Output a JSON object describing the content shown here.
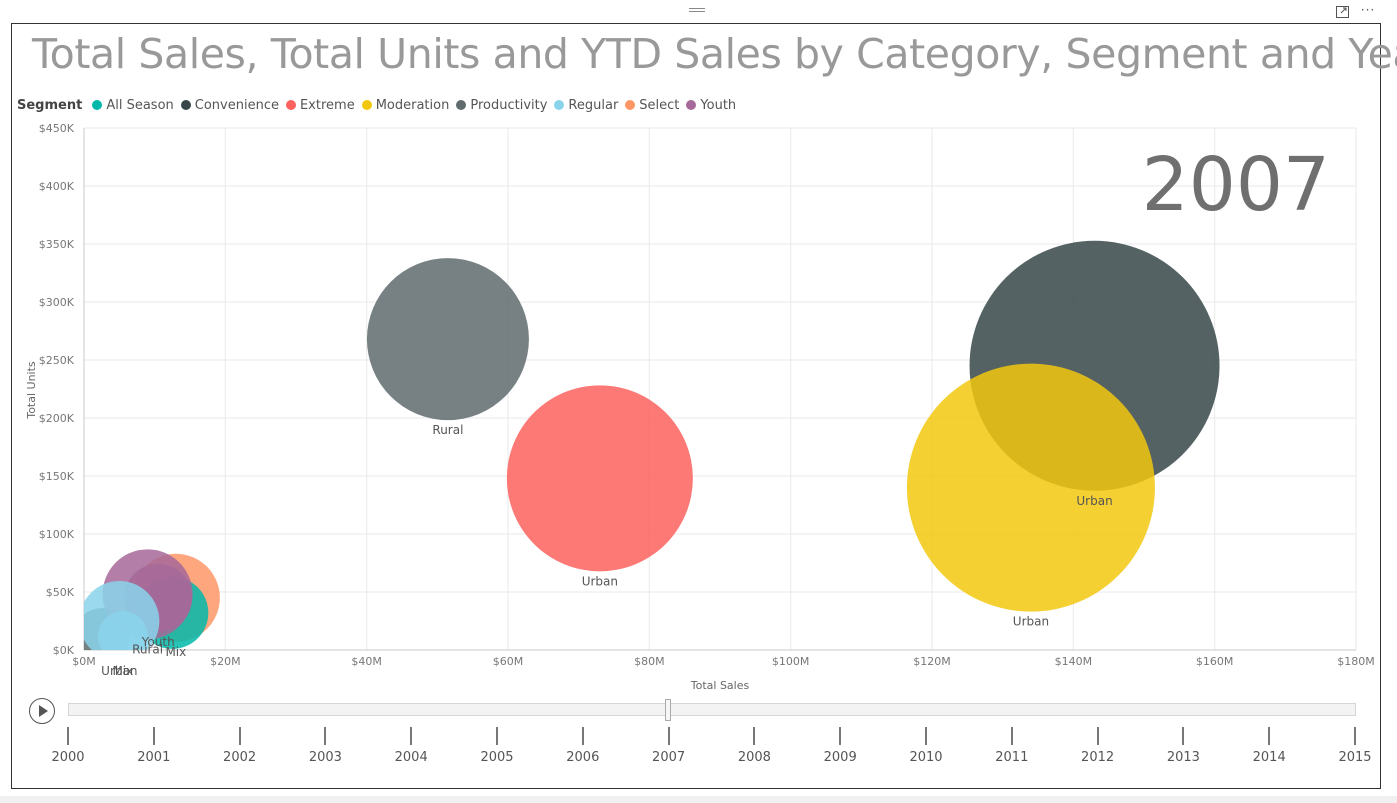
{
  "title": "Total Sales, Total Units and YTD Sales by Category, Segment and Year",
  "legend": {
    "title": "Segment",
    "items": [
      {
        "label": "All Season",
        "color": "#01B8AA"
      },
      {
        "label": "Convenience",
        "color": "#374649"
      },
      {
        "label": "Extreme",
        "color": "#FD625E"
      },
      {
        "label": "Moderation",
        "color": "#F2C80F"
      },
      {
        "label": "Productivity",
        "color": "#5F6B6D"
      },
      {
        "label": "Regular",
        "color": "#8AD4EB"
      },
      {
        "label": "Select",
        "color": "#FE9666"
      },
      {
        "label": "Youth",
        "color": "#A66999"
      }
    ]
  },
  "play_axis": {
    "current_year": "2007",
    "years": [
      "2000",
      "2001",
      "2002",
      "2003",
      "2004",
      "2005",
      "2006",
      "2007",
      "2008",
      "2009",
      "2010",
      "2011",
      "2012",
      "2013",
      "2014",
      "2015"
    ]
  },
  "chart_data": {
    "type": "scatter",
    "subtype": "bubble",
    "title": "Total Sales, Total Units and YTD Sales by Category, Segment and Year",
    "xlabel": "Total Sales",
    "ylabel": "Total Units",
    "xlim": [
      0,
      180000000
    ],
    "ylim": [
      0,
      450000
    ],
    "x_ticks": [
      "$0M",
      "$20M",
      "$40M",
      "$60M",
      "$80M",
      "$100M",
      "$120M",
      "$140M",
      "$160M",
      "$180M"
    ],
    "y_ticks": [
      "$0K",
      "$50K",
      "$100K",
      "$150K",
      "$200K",
      "$250K",
      "$300K",
      "$350K",
      "$400K",
      "$450K"
    ],
    "grid": true,
    "year_watermark": "2007",
    "series": [
      {
        "segment": "Convenience",
        "color": "#374649",
        "points": [
          {
            "x": 143000000,
            "y": 245000,
            "size": 125,
            "label": "Urban"
          }
        ]
      },
      {
        "segment": "Moderation",
        "color": "#F2C80F",
        "points": [
          {
            "x": 134000000,
            "y": 140000,
            "size": 124,
            "label": "Urban"
          }
        ]
      },
      {
        "segment": "Productivity",
        "color": "#5F6B6D",
        "points": [
          {
            "x": 51500000,
            "y": 268000,
            "size": 81,
            "label": "Rural"
          },
          {
            "x": 2500000,
            "y": 12000,
            "size": 28,
            "label": ""
          }
        ]
      },
      {
        "segment": "Extreme",
        "color": "#FD625E",
        "points": [
          {
            "x": 73000000,
            "y": 148000,
            "size": 93,
            "label": "Urban"
          }
        ]
      },
      {
        "segment": "Select",
        "color": "#FE9666",
        "points": [
          {
            "x": 13000000,
            "y": 45000,
            "size": 44,
            "label": "Mix"
          }
        ]
      },
      {
        "segment": "All Season",
        "color": "#01B8AA",
        "points": [
          {
            "x": 12500000,
            "y": 32000,
            "size": 36,
            "label": ""
          }
        ]
      },
      {
        "segment": "Youth",
        "color": "#A66999",
        "points": [
          {
            "x": 9000000,
            "y": 48000,
            "size": 45,
            "label": "Rural"
          },
          {
            "x": 10500000,
            "y": 45000,
            "size": 34,
            "label": "Youth"
          }
        ]
      },
      {
        "segment": "Regular",
        "color": "#8AD4EB",
        "points": [
          {
            "x": 5000000,
            "y": 25000,
            "size": 40,
            "label": "Urban"
          },
          {
            "x": 5500000,
            "y": 12000,
            "size": 25,
            "label": "Mix"
          }
        ]
      }
    ]
  }
}
